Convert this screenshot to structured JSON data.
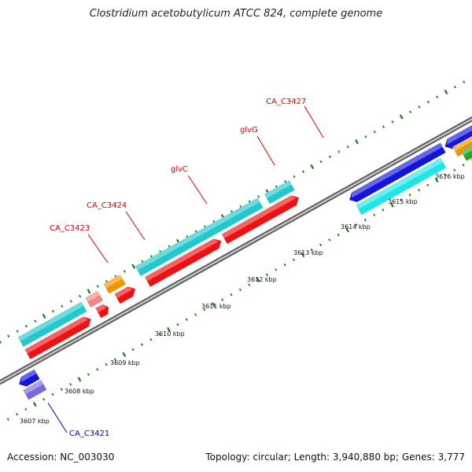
{
  "title": "Clostridium acetobutylicum ATCC 824, complete genome",
  "footer": {
    "accession": "Accession: NC_003030",
    "summary": "Topology: circular; Length: 3,940,880 bp; Genes: 3,777"
  },
  "colors": {
    "backbone": "#8e8e8e",
    "cyan": "#22c8cc",
    "bright_cyan": "#1ee6e6",
    "red": "#ee1111",
    "orange": "#f09600",
    "blue": "#1414dd",
    "violet": "#7a6ad6",
    "pink": "#ee8888",
    "green": "#22aa22",
    "tick": "#1a7a1a",
    "label_red": "#dd0000",
    "label_blue": "#0000cc"
  },
  "scale_labels": [
    "3607 kbp",
    "3608 kbp",
    "3609 kbp",
    "3610 kbp",
    "3611 kbp",
    "3612 kbp",
    "3613 kbp",
    "3614 kbp",
    "3615 kbp",
    "3616 kbp"
  ],
  "gene_labels": [
    {
      "text": "CA_C3427",
      "color": "red"
    },
    {
      "text": "glvG",
      "color": "red"
    },
    {
      "text": "glvC",
      "color": "red"
    },
    {
      "text": "CA_C3424",
      "color": "red"
    },
    {
      "text": "CA_C3423",
      "color": "red"
    },
    {
      "text": "CA_C3421",
      "color": "blue"
    }
  ]
}
